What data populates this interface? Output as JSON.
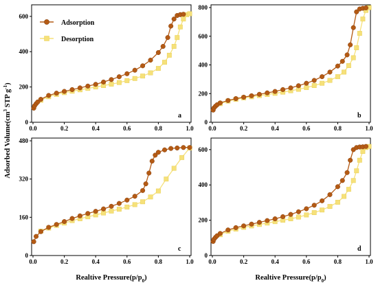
{
  "figure": {
    "y_axis_label": "Adsorbed Volume(cm",
    "y_axis_label_sup": "3",
    "y_axis_label_mid": " STP g",
    "y_axis_label_sup2": "-1",
    "y_axis_label_end": ")",
    "x_axis_label": "Realtive Pressure(p/p",
    "x_axis_label_sub": "0",
    "x_axis_label_end": ")"
  },
  "legend": {
    "adsorption": "Adsorption",
    "desorption": "Desorption",
    "placement": "top-left of panel a"
  },
  "colors": {
    "adsorption": "#b45a14",
    "desorption": "#f6e17a"
  },
  "chart_data": [
    {
      "type": "line",
      "panel": "a",
      "xlim": [
        0.0,
        1.0
      ],
      "ylim": [
        0,
        650
      ],
      "xticks": [
        "0.0",
        "0.2",
        "0.4",
        "0.6",
        "0.8",
        "1.0"
      ],
      "yticks": [
        "0",
        "200",
        "400",
        "600"
      ],
      "ytick_values": [
        0,
        200,
        400,
        600
      ],
      "series": [
        {
          "name": "Adsorption",
          "x": [
            0.005,
            0.01,
            0.02,
            0.03,
            0.05,
            0.1,
            0.15,
            0.2,
            0.25,
            0.3,
            0.35,
            0.4,
            0.45,
            0.5,
            0.55,
            0.6,
            0.65,
            0.7,
            0.75,
            0.8,
            0.83,
            0.86,
            0.88,
            0.9,
            0.92,
            0.94,
            0.96
          ],
          "y": [
            80,
            93,
            105,
            115,
            130,
            152,
            165,
            175,
            185,
            195,
            205,
            215,
            228,
            242,
            258,
            275,
            295,
            320,
            352,
            395,
            430,
            480,
            545,
            585,
            605,
            610,
            612
          ]
        },
        {
          "name": "Desorption",
          "x": [
            0.05,
            0.1,
            0.15,
            0.2,
            0.25,
            0.3,
            0.35,
            0.4,
            0.45,
            0.5,
            0.55,
            0.6,
            0.65,
            0.7,
            0.75,
            0.8,
            0.84,
            0.87,
            0.9,
            0.92,
            0.94,
            0.96,
            0.98,
            1.0
          ],
          "y": [
            125,
            145,
            158,
            168,
            176,
            184,
            192,
            200,
            208,
            216,
            225,
            236,
            248,
            262,
            280,
            305,
            340,
            380,
            430,
            480,
            540,
            585,
            610,
            615
          ]
        }
      ]
    },
    {
      "type": "line",
      "panel": "b",
      "xlim": [
        0.0,
        1.0
      ],
      "ylim": [
        0,
        800
      ],
      "xticks": [
        "0.0",
        "0.2",
        "0.4",
        "0.6",
        "0.8",
        "1.0"
      ],
      "yticks": [
        "0",
        "200",
        "400",
        "600",
        "800"
      ],
      "ytick_values": [
        0,
        200,
        400,
        600,
        800
      ],
      "series": [
        {
          "name": "Adsorption",
          "x": [
            0.005,
            0.01,
            0.02,
            0.03,
            0.05,
            0.1,
            0.15,
            0.2,
            0.25,
            0.3,
            0.35,
            0.4,
            0.45,
            0.5,
            0.55,
            0.6,
            0.65,
            0.7,
            0.75,
            0.8,
            0.83,
            0.86,
            0.88,
            0.9,
            0.92,
            0.94,
            0.96,
            0.98
          ],
          "y": [
            85,
            100,
            112,
            122,
            135,
            152,
            165,
            175,
            185,
            195,
            205,
            215,
            228,
            240,
            255,
            272,
            292,
            318,
            350,
            392,
            425,
            470,
            540,
            660,
            770,
            790,
            795,
            798
          ]
        },
        {
          "name": "Desorption",
          "x": [
            0.05,
            0.1,
            0.15,
            0.2,
            0.25,
            0.3,
            0.35,
            0.4,
            0.45,
            0.5,
            0.55,
            0.6,
            0.65,
            0.7,
            0.75,
            0.8,
            0.84,
            0.87,
            0.9,
            0.92,
            0.94,
            0.96,
            0.98,
            1.0
          ],
          "y": [
            130,
            148,
            160,
            170,
            178,
            186,
            194,
            202,
            210,
            220,
            230,
            242,
            256,
            272,
            292,
            318,
            350,
            395,
            450,
            520,
            620,
            720,
            780,
            800
          ]
        }
      ]
    },
    {
      "type": "line",
      "panel": "c",
      "xlim": [
        0.0,
        1.0
      ],
      "ylim": [
        0,
        480
      ],
      "xticks": [
        "0.0",
        "0.2",
        "0.4",
        "0.6",
        "0.8",
        "1.0"
      ],
      "yticks": [
        "0",
        "160",
        "320",
        "480"
      ],
      "ytick_values": [
        0,
        160,
        320,
        480
      ],
      "series": [
        {
          "name": "Adsorption",
          "x": [
            0.005,
            0.02,
            0.05,
            0.1,
            0.15,
            0.2,
            0.25,
            0.3,
            0.35,
            0.4,
            0.45,
            0.5,
            0.55,
            0.6,
            0.65,
            0.7,
            0.72,
            0.74,
            0.76,
            0.78,
            0.8,
            0.84,
            0.88,
            0.92,
            0.96,
            1.0
          ],
          "y": [
            58,
            80,
            100,
            118,
            130,
            142,
            155,
            166,
            176,
            185,
            195,
            206,
            218,
            232,
            248,
            272,
            300,
            345,
            395,
            420,
            432,
            442,
            448,
            450,
            452,
            452
          ]
        },
        {
          "name": "Desorption",
          "x": [
            0.05,
            0.1,
            0.15,
            0.2,
            0.25,
            0.3,
            0.35,
            0.4,
            0.45,
            0.5,
            0.55,
            0.6,
            0.65,
            0.7,
            0.75,
            0.8,
            0.85,
            0.9,
            0.95,
            1.0
          ],
          "y": [
            102,
            115,
            126,
            136,
            146,
            154,
            162,
            170,
            178,
            186,
            194,
            203,
            213,
            225,
            245,
            270,
            320,
            365,
            410,
            450
          ]
        }
      ]
    },
    {
      "type": "line",
      "panel": "d",
      "xlim": [
        0.0,
        1.0
      ],
      "ylim": [
        0,
        650
      ],
      "xticks": [
        "0.0",
        "0.2",
        "0.4",
        "0.6",
        "0.8",
        "1.0"
      ],
      "yticks": [
        "0",
        "200",
        "400",
        "600"
      ],
      "ytick_values": [
        0,
        200,
        400,
        600
      ],
      "series": [
        {
          "name": "Adsorption",
          "x": [
            0.005,
            0.01,
            0.02,
            0.03,
            0.05,
            0.1,
            0.15,
            0.2,
            0.25,
            0.3,
            0.35,
            0.4,
            0.45,
            0.5,
            0.55,
            0.6,
            0.65,
            0.7,
            0.75,
            0.8,
            0.83,
            0.86,
            0.88,
            0.9,
            0.92,
            0.94,
            0.96,
            0.98
          ],
          "y": [
            80,
            92,
            103,
            112,
            125,
            145,
            158,
            168,
            178,
            188,
            198,
            208,
            220,
            233,
            248,
            265,
            285,
            310,
            345,
            390,
            425,
            470,
            540,
            600,
            612,
            615,
            616,
            618
          ]
        },
        {
          "name": "Desorption",
          "x": [
            0.05,
            0.1,
            0.15,
            0.2,
            0.25,
            0.3,
            0.35,
            0.4,
            0.45,
            0.5,
            0.55,
            0.6,
            0.65,
            0.7,
            0.75,
            0.8,
            0.84,
            0.87,
            0.9,
            0.92,
            0.94,
            0.96,
            0.98,
            1.0
          ],
          "y": [
            118,
            138,
            150,
            160,
            168,
            176,
            184,
            192,
            200,
            208,
            218,
            230,
            243,
            258,
            278,
            302,
            335,
            375,
            425,
            480,
            540,
            590,
            612,
            618
          ]
        }
      ]
    }
  ]
}
